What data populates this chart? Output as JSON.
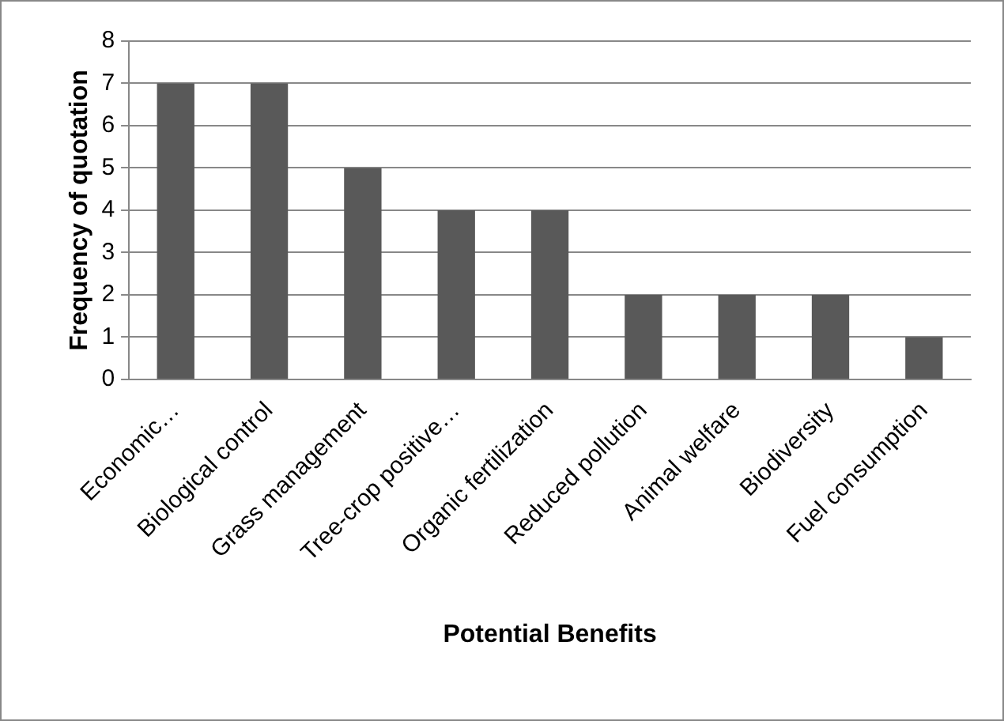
{
  "chart_data": {
    "type": "bar",
    "xlabel": "Potential Benefits",
    "ylabel": "Frequency of quotation",
    "categories": [
      "Economic…",
      "Biological control",
      "Grass management",
      "Tree-crop positive…",
      "Organic fertilization",
      "Reduced pollution",
      "Animal welfare",
      "Biodiversity",
      "Fuel consumption"
    ],
    "values": [
      7,
      7,
      5,
      4,
      4,
      2,
      2,
      2,
      1
    ],
    "color": "#595959",
    "ylim": [
      0,
      8
    ],
    "yticks": [
      0,
      1,
      2,
      3,
      4,
      5,
      6,
      7,
      8
    ],
    "grid": "y",
    "legend": false
  }
}
